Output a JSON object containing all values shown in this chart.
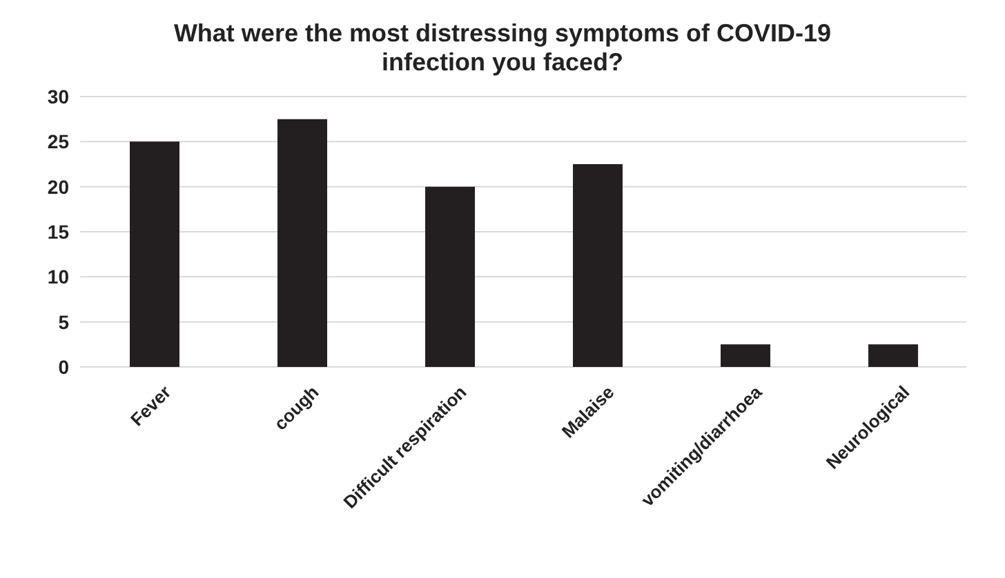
{
  "chart_data": {
    "type": "bar",
    "title": "What were the most distressing symptoms of COVID-19 infection you faced?",
    "categories": [
      "Fever",
      "cough",
      "Difficult respiration",
      "Malaise",
      "vomiting/diarrhoea",
      "Neurological"
    ],
    "values": [
      25,
      27.5,
      20,
      22.5,
      2.5,
      2.5
    ],
    "color": "#231f20",
    "ylim": [
      0,
      30
    ],
    "yticks": [
      0,
      5,
      10,
      15,
      20,
      25,
      30
    ],
    "grid": "y"
  }
}
